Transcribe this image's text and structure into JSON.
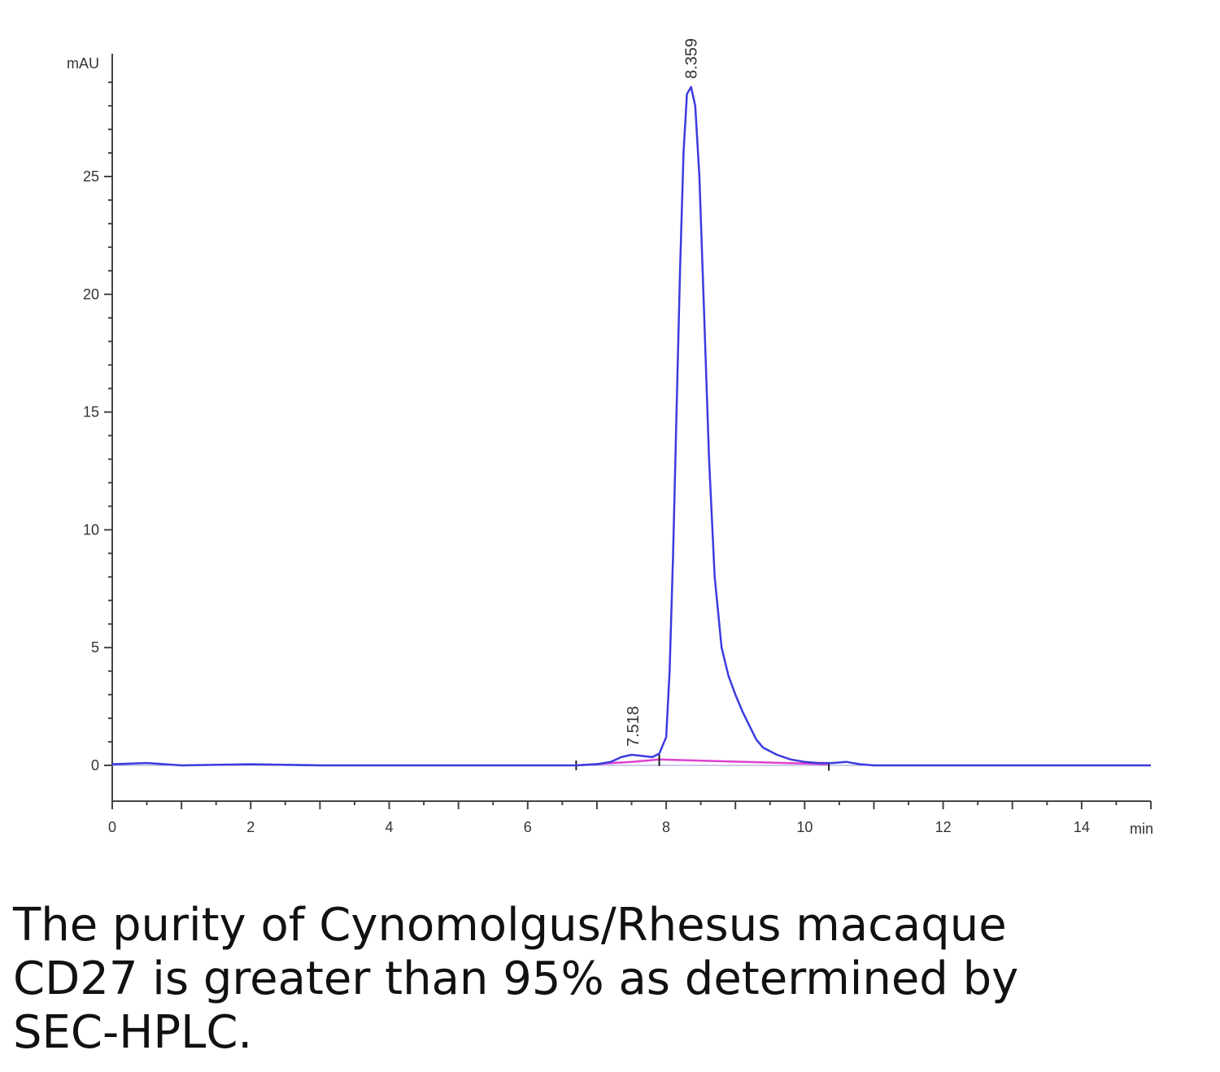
{
  "chart_data": {
    "type": "line",
    "ylabel": "mAU",
    "xlabel": "min",
    "xlim": [
      0,
      15
    ],
    "ylim": [
      -1.5,
      30
    ],
    "x_ticks": [
      {
        "value": 0,
        "label": "0"
      },
      {
        "value": 2,
        "label": "2"
      },
      {
        "value": 4,
        "label": "4"
      },
      {
        "value": 6,
        "label": "6"
      },
      {
        "value": 8,
        "label": "8"
      },
      {
        "value": 10,
        "label": "10"
      },
      {
        "value": 12,
        "label": "12"
      },
      {
        "value": 14,
        "label": "14"
      }
    ],
    "y_ticks": [
      {
        "value": 0,
        "label": "0"
      },
      {
        "value": 5,
        "label": "5"
      },
      {
        "value": 10,
        "label": "10"
      },
      {
        "value": 15,
        "label": "15"
      },
      {
        "value": 20,
        "label": "20"
      },
      {
        "value": 25,
        "label": "25"
      }
    ],
    "series": [
      {
        "color": "#3b3bdf",
        "x": [
          0,
          0.5,
          1,
          2,
          3,
          4,
          5,
          6,
          6.7,
          7.0,
          7.2,
          7.35,
          7.5,
          7.65,
          7.8,
          7.9,
          8.0,
          8.05,
          8.1,
          8.15,
          8.2,
          8.25,
          8.3,
          8.36,
          8.42,
          8.48,
          8.55,
          8.62,
          8.7,
          8.8,
          8.9,
          9.0,
          9.1,
          9.2,
          9.3,
          9.4,
          9.6,
          9.8,
          10.0,
          10.2,
          10.4,
          10.6,
          10.8,
          11,
          12,
          13,
          14,
          15
        ],
        "y": [
          0.05,
          0.1,
          0.0,
          0.05,
          0.0,
          0.0,
          0.0,
          0.0,
          0.0,
          0.05,
          0.15,
          0.35,
          0.45,
          0.4,
          0.35,
          0.5,
          1.2,
          4.0,
          9.0,
          15.0,
          21.0,
          26.0,
          28.5,
          28.8,
          28.0,
          25.0,
          19.0,
          13.0,
          8.0,
          5.0,
          3.8,
          3.0,
          2.3,
          1.7,
          1.1,
          0.75,
          0.45,
          0.25,
          0.15,
          0.1,
          0.1,
          0.15,
          0.05,
          0.0,
          0.0,
          0.0,
          0.0,
          0.0
        ]
      }
    ],
    "baselines": [
      {
        "color": "#e040d0",
        "x": [
          6.7,
          7.5,
          7.9
        ],
        "y": [
          0.0,
          0.15,
          0.25
        ]
      },
      {
        "color": "#e040d0",
        "x": [
          7.9,
          10.35
        ],
        "y": [
          0.25,
          0.05
        ]
      }
    ],
    "peaks": [
      {
        "x": 7.518,
        "y": 0.45,
        "label": "7.518"
      },
      {
        "x": 8.359,
        "y": 28.8,
        "label": "8.359"
      }
    ]
  },
  "caption": "The purity of Cynomolgus/Rhesus macaque CD27 is greater than 95% as determined by SEC-HPLC."
}
